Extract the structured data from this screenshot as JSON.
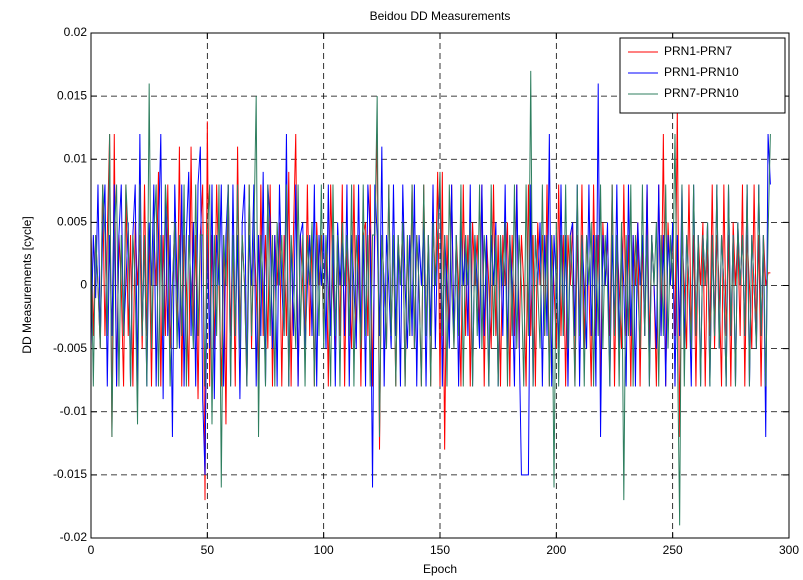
{
  "chart_data": {
    "type": "line",
    "title": "Beidou DD Measurements",
    "xlabel": "Epoch",
    "ylabel": "DD Measurements [cycle]",
    "xlim": [
      0,
      300
    ],
    "xticks": [
      0,
      50,
      100,
      150,
      200,
      250,
      300
    ],
    "ylim": [
      -0.02,
      0.02
    ],
    "yticks": [
      -0.02,
      -0.015,
      -0.01,
      -0.005,
      0,
      0.005,
      0.01,
      0.015,
      0.02
    ],
    "grid": true,
    "legend": "northeast",
    "x": [
      0,
      1,
      2,
      3,
      4,
      5,
      6,
      7,
      8,
      9,
      10,
      11,
      12,
      13,
      14,
      15,
      16,
      17,
      18,
      19,
      20,
      21,
      22,
      23,
      24,
      25,
      26,
      27,
      28,
      29,
      30,
      31,
      32,
      33,
      34,
      35,
      36,
      37,
      38,
      39,
      40,
      41,
      42,
      43,
      44,
      45,
      46,
      47,
      48,
      49,
      50,
      51,
      52,
      53,
      54,
      55,
      56,
      57,
      58,
      59,
      60,
      61,
      62,
      63,
      64,
      65,
      66,
      67,
      68,
      69,
      70,
      71,
      72,
      73,
      74,
      75,
      76,
      77,
      78,
      79,
      80,
      81,
      82,
      83,
      84,
      85,
      86,
      87,
      88,
      89,
      90,
      91,
      92,
      93,
      94,
      95,
      96,
      97,
      98,
      99,
      100,
      101,
      102,
      103,
      104,
      105,
      106,
      107,
      108,
      109,
      110,
      111,
      112,
      113,
      114,
      115,
      116,
      117,
      118,
      119,
      120,
      121,
      122,
      123,
      124,
      125,
      126,
      127,
      128,
      129,
      130,
      131,
      132,
      133,
      134,
      135,
      136,
      137,
      138,
      139,
      140,
      141,
      142,
      143,
      144,
      145,
      146,
      147,
      148,
      149,
      150,
      151,
      152,
      153,
      154,
      155,
      156,
      157,
      158,
      159,
      160,
      161,
      162,
      163,
      164,
      165,
      166,
      167,
      168,
      169,
      170,
      171,
      172,
      173,
      174,
      175,
      176,
      177,
      178,
      179,
      180,
      181,
      182,
      183,
      184,
      185,
      186,
      187,
      188,
      189,
      190,
      191,
      192,
      193,
      194,
      195,
      196,
      197,
      198,
      199,
      200,
      201,
      202,
      203,
      204,
      205,
      206,
      207,
      208,
      209,
      210,
      211,
      212,
      213,
      214,
      215,
      216,
      217,
      218,
      219,
      220,
      221,
      222,
      223,
      224,
      225,
      226,
      227,
      228,
      229,
      230,
      231,
      232,
      233,
      234,
      235,
      236,
      237,
      238,
      239,
      240,
      241,
      242,
      243,
      244,
      245,
      246,
      247,
      248,
      249,
      250,
      251,
      252,
      253,
      254,
      255,
      256,
      257,
      258,
      259,
      260,
      261,
      262,
      263,
      264,
      265,
      266,
      267,
      268,
      269,
      270,
      271,
      272,
      273,
      274,
      275,
      276,
      277,
      278,
      279,
      280,
      281,
      282,
      283,
      284,
      285,
      286,
      287,
      288,
      289,
      290,
      291,
      292
    ],
    "series": [
      {
        "name": "PRN1-PRN7",
        "color": "#ff0000",
        "values": [
          0.004,
          -0.004,
          0.004,
          0,
          -0.005,
          0.008,
          -0.004,
          0.004,
          0.012,
          -0.012,
          0.012,
          -0.008,
          0.004,
          0,
          -0.008,
          0.008,
          -0.004,
          0.004,
          -0.008,
          0.005,
          0,
          0.004,
          -0.005,
          0.008,
          -0.004,
          0.004,
          -0.008,
          0.004,
          0,
          0.009,
          -0.008,
          0.004,
          -0.004,
          0.008,
          -0.005,
          0,
          0.005,
          -0.004,
          0.011,
          -0.008,
          0.004,
          0,
          -0.008,
          0.011,
          -0.004,
          0.004,
          -0.009,
          0.004,
          0.008,
          -0.017,
          0.013,
          -0.008,
          0.004,
          -0.005,
          0.008,
          0,
          -0.008,
          0.004,
          -0.011,
          0.008,
          -0.004,
          0.004,
          -0.008,
          0.011,
          -0.004,
          0.004,
          0,
          -0.008,
          0.008,
          -0.005,
          0.004,
          0,
          -0.008,
          0.008,
          -0.004,
          0.004,
          -0.005,
          0.008,
          -0.008,
          0.004,
          0,
          0.005,
          -0.008,
          0.004,
          -0.004,
          0.009,
          -0.008,
          0.004,
          0.012,
          -0.008,
          0.004,
          0,
          -0.005,
          0.008,
          -0.004,
          0.004,
          -0.008,
          0.005,
          0,
          0.004,
          -0.004,
          0.004,
          -0.008,
          0.008,
          0,
          -0.005,
          0.004,
          -0.004,
          0.008,
          -0.008,
          0.004,
          0,
          -0.005,
          0.008,
          -0.004,
          0.004,
          -0.008,
          0.004,
          0.005,
          -0.004,
          0.008,
          -0.008,
          0.004,
          0.012,
          -0.013,
          0.004,
          0,
          -0.005,
          0.008,
          -0.004,
          0.004,
          -0.008,
          0.004,
          0,
          0.005,
          -0.008,
          0.004,
          -0.004,
          0.008,
          -0.005,
          0.004,
          0,
          -0.008,
          0.008,
          -0.004,
          0.004,
          -0.008,
          0.005,
          0,
          0.009,
          -0.008,
          0.009,
          -0.013,
          0.004,
          -0.004,
          0.008,
          -0.005,
          0.004,
          0,
          -0.008,
          0.008,
          -0.004,
          0.004,
          -0.008,
          0.005,
          0,
          0.004,
          -0.004,
          0.008,
          -0.008,
          0.004,
          0,
          -0.005,
          0.008,
          -0.004,
          0.004,
          -0.008,
          0.004,
          0,
          0.005,
          -0.008,
          0.004,
          -0.004,
          0.008,
          -0.005,
          0.004,
          0,
          -0.008,
          0.008,
          -0.004,
          0.004,
          -0.008,
          0.005,
          0,
          0.004,
          -0.004,
          0.008,
          -0.008,
          0.004,
          0,
          -0.005,
          0.008,
          -0.004,
          0.004,
          -0.008,
          0.004,
          0,
          0.005,
          -0.008,
          0.004,
          -0.004,
          0.008,
          -0.005,
          0.004,
          0,
          -0.008,
          0.008,
          -0.004,
          0.004,
          -0.008,
          0.005,
          0,
          0.004,
          -0.004,
          0.008,
          -0.008,
          0.004,
          0,
          -0.005,
          0.008,
          -0.004,
          0.004,
          -0.008,
          0.004,
          0,
          0.005,
          -0.008,
          0.004,
          -0.004,
          0.008,
          -0.005,
          0.004,
          0,
          -0.008,
          0.008,
          -0.004,
          0.012,
          -0.008,
          0.005,
          0,
          0.004,
          -0.004,
          0.014,
          -0.012,
          0.004,
          0,
          -0.005,
          0.008,
          -0.004,
          0.004,
          -0.008,
          0.004,
          0,
          0.005,
          -0.008,
          0.004,
          -0.004,
          0.008,
          -0.005,
          0.004,
          0,
          -0.008,
          0.008,
          -0.004,
          0.004,
          -0.008,
          0.005,
          0,
          0.004,
          -0.004,
          0.008,
          -0.008,
          0.004,
          0,
          -0.005,
          0.008,
          -0.004,
          0.004,
          -0.008,
          0.004,
          0,
          0.001,
          0.001
        ]
      },
      {
        "name": "PRN1-PRN10",
        "color": "#0000ff",
        "values": [
          -0.005,
          0.004,
          -0.001,
          0.008,
          -0.004,
          0.004,
          0.008,
          -0.008,
          0.004,
          -0.004,
          0.008,
          -0.008,
          0.004,
          0.008,
          -0.004,
          0,
          0.005,
          -0.008,
          0.004,
          0.008,
          -0.008,
          0.012,
          -0.004,
          0.004,
          -0.008,
          0.005,
          0,
          0.008,
          -0.008,
          0.004,
          0.012,
          -0.009,
          0.008,
          -0.004,
          0.004,
          -0.012,
          0.008,
          0,
          -0.005,
          0.008,
          -0.008,
          0.004,
          0.009,
          -0.004,
          0.005,
          -0.008,
          0.008,
          0.011,
          -0.009,
          -0.015,
          0.004,
          -0.005,
          0.008,
          -0.009,
          0.004,
          0,
          0.008,
          -0.008,
          0.004,
          0.008,
          -0.008,
          0.008,
          -0.004,
          0.004,
          -0.009,
          0.005,
          0.008,
          -0.008,
          0.004,
          0,
          0.008,
          -0.008,
          0.004,
          -0.004,
          0.009,
          -0.008,
          0.008,
          0.005,
          -0.005,
          0.004,
          -0.008,
          0.008,
          0,
          -0.004,
          0.012,
          -0.008,
          0.004,
          -0.004,
          0.008,
          -0.008,
          0.004,
          0.005,
          -0.005,
          0,
          0.004,
          -0.004,
          0.008,
          -0.008,
          0.004,
          0,
          0.004,
          -0.005,
          0.008,
          -0.004,
          0.004,
          -0.008,
          0.005,
          0,
          0.004,
          -0.004,
          0.008,
          -0.008,
          0.004,
          0,
          -0.005,
          0.008,
          -0.004,
          0.004,
          -0.008,
          0.008,
          0.004,
          -0.016,
          0.008,
          0.004,
          -0.004,
          0.011,
          -0.008,
          0.004,
          0,
          -0.005,
          0.008,
          -0.004,
          0.004,
          -0.008,
          0.008,
          0,
          -0.005,
          0.004,
          -0.004,
          0.008,
          -0.008,
          0.004,
          0,
          0.005,
          -0.008,
          0.004,
          -0.004,
          0.008,
          -0.005,
          0.004,
          0.008,
          -0.008,
          0.004,
          0,
          -0.005,
          0.008,
          -0.004,
          0.004,
          -0.008,
          0.005,
          0,
          0.004,
          -0.004,
          0.008,
          -0.008,
          0.004,
          0,
          -0.005,
          0.008,
          -0.004,
          0.004,
          -0.008,
          0.004,
          0,
          0.005,
          -0.008,
          0.004,
          -0.004,
          0.008,
          -0.005,
          0.004,
          0,
          -0.008,
          0.008,
          -0.004,
          -0.015,
          -0.015,
          -0.015,
          -0.015,
          0.008,
          -0.008,
          0.004,
          0,
          0.005,
          -0.008,
          0.004,
          -0.004,
          0.012,
          -0.008,
          0.004,
          0,
          -0.005,
          0.008,
          -0.004,
          0.004,
          -0.008,
          0.004,
          0.005,
          -0.004,
          0.008,
          -0.008,
          0.004,
          0,
          -0.005,
          0.008,
          -0.004,
          0.004,
          -0.008,
          0.016,
          -0.012,
          0.004,
          0,
          0.005,
          -0.008,
          0.004,
          -0.004,
          0.008,
          -0.005,
          0.004,
          0,
          -0.008,
          0.008,
          -0.004,
          0.004,
          -0.008,
          0.005,
          0,
          0.004,
          -0.004,
          0.008,
          -0.008,
          0.004,
          0,
          -0.005,
          0.008,
          -0.004,
          0.004,
          -0.008,
          0.004,
          0,
          0.005,
          -0.008,
          0.004,
          -0.004,
          0.008,
          -0.005,
          0.004,
          0,
          -0.008,
          0.008,
          -0.004,
          0.004,
          -0.008,
          0.004,
          0,
          0.005,
          -0.008,
          0.004,
          -0.004,
          0.008,
          -0.005,
          0.004,
          0,
          -0.008,
          0.008,
          -0.004,
          0.004,
          -0.008,
          0.005,
          0,
          0.004,
          -0.004,
          0.008,
          -0.008,
          0.004,
          0,
          -0.005,
          0.008,
          -0.004,
          0.004,
          -0.012,
          0.012,
          0.008
        ]
      },
      {
        "name": "PRN7-PRN10",
        "color": "#2f7f5f",
        "values": [
          0.004,
          -0.008,
          0.004,
          0,
          -0.005,
          0.008,
          0.004,
          -0.004,
          0.012,
          -0.012,
          0.004,
          0.008,
          -0.008,
          0.004,
          -0.004,
          0.008,
          0.004,
          -0.008,
          0.004,
          0,
          -0.011,
          0.008,
          -0.004,
          0.004,
          -0.008,
          0.016,
          -0.005,
          0.004,
          0.008,
          -0.008,
          0.004,
          -0.004,
          0.008,
          0.004,
          -0.008,
          0,
          0.005,
          -0.005,
          0.004,
          -0.004,
          0.008,
          -0.008,
          0.004,
          0,
          -0.005,
          0.008,
          -0.004,
          0.004,
          0.004,
          -0.008,
          0.004,
          0.008,
          -0.011,
          0.004,
          -0.004,
          0.008,
          -0.016,
          0.004,
          0,
          0.008,
          -0.008,
          0.004,
          -0.004,
          0.008,
          -0.005,
          0.004,
          0,
          -0.008,
          0.008,
          -0.004,
          0.004,
          0.015,
          -0.012,
          0.004,
          0,
          -0.008,
          0.008,
          -0.004,
          0.004,
          -0.008,
          0.005,
          0,
          0.004,
          -0.004,
          0.008,
          -0.008,
          0.004,
          0,
          -0.005,
          0.008,
          -0.004,
          0.004,
          -0.008,
          0.004,
          0,
          0.005,
          -0.008,
          0.004,
          -0.004,
          0.008,
          -0.005,
          0.004,
          0,
          -0.008,
          0.008,
          -0.004,
          0.004,
          -0.008,
          0.005,
          0,
          0.004,
          -0.004,
          0.008,
          -0.008,
          0.004,
          0,
          -0.005,
          0.008,
          -0.004,
          0.004,
          -0.008,
          0.004,
          0.004,
          0.015,
          -0.012,
          0.004,
          0,
          -0.005,
          0.008,
          -0.004,
          0.004,
          -0.008,
          0.004,
          0,
          0.005,
          -0.008,
          0.004,
          -0.004,
          0.008,
          -0.005,
          0.004,
          0,
          -0.008,
          0.008,
          -0.004,
          0.004,
          -0.008,
          0.005,
          0,
          0.004,
          0.009,
          -0.004,
          0.004,
          -0.008,
          0.008,
          0,
          -0.005,
          0.004,
          -0.004,
          0.008,
          -0.008,
          0.004,
          0,
          0.005,
          -0.008,
          0.004,
          -0.004,
          0.008,
          -0.005,
          0.004,
          0,
          -0.008,
          0.008,
          -0.004,
          0.004,
          -0.008,
          0.004,
          0,
          0.005,
          -0.008,
          0.004,
          -0.004,
          0.008,
          -0.005,
          0.004,
          0,
          -0.008,
          0.008,
          -0.004,
          0.017,
          -0.008,
          0.004,
          0,
          -0.005,
          0.008,
          -0.004,
          0.004,
          -0.008,
          0.004,
          -0.016,
          0.005,
          -0.008,
          0.004,
          -0.004,
          0.008,
          -0.005,
          0.004,
          0,
          -0.008,
          0.008,
          -0.004,
          0.004,
          -0.008,
          0.004,
          0,
          0.005,
          -0.008,
          0.004,
          -0.004,
          0.008,
          -0.005,
          0.004,
          0,
          -0.008,
          0.008,
          -0.004,
          0.004,
          -0.008,
          0.005,
          -0.017,
          0.004,
          -0.004,
          0.008,
          -0.008,
          0.004,
          0,
          -0.005,
          0.008,
          -0.004,
          0.004,
          -0.008,
          0.004,
          0,
          0.005,
          -0.008,
          0.004,
          -0.004,
          0.008,
          -0.005,
          0.004,
          0,
          0.012,
          -0.004,
          -0.019,
          0.008,
          -0.008,
          0.004,
          0,
          -0.005,
          0.008,
          -0.004,
          0.004,
          -0.008,
          0.004,
          0,
          0.005,
          -0.008,
          0.004,
          -0.004,
          0.008,
          -0.005,
          0.004,
          0,
          -0.008,
          0.008,
          -0.004,
          0.004,
          -0.008,
          0.005,
          0,
          0.004,
          -0.004,
          0.008,
          -0.008,
          0.004,
          0,
          -0.005,
          0.008,
          -0.004,
          0.004,
          -0.008,
          0.004,
          0.012
        ]
      }
    ]
  }
}
